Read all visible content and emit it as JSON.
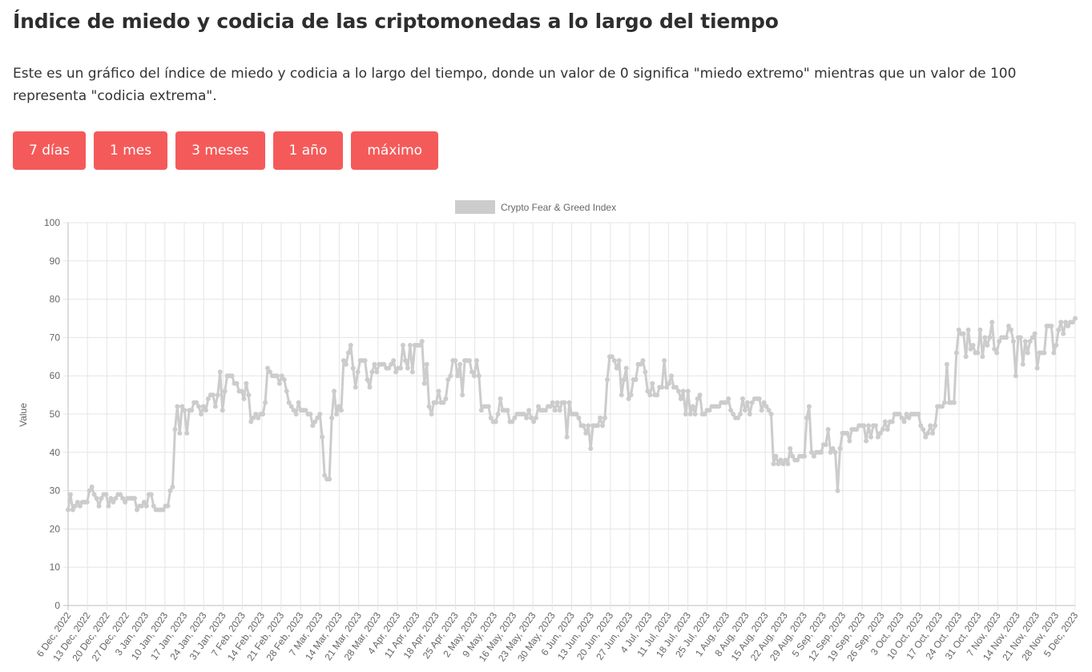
{
  "page": {
    "title": "Índice de miedo y codicia de las criptomonedas a lo largo del tiempo",
    "description": "Este es un gráfico del índice de miedo y codicia a lo largo del tiempo, donde un valor de 0 significa \"miedo extremo\" mientras que un valor de 100 representa \"codicia extrema\"."
  },
  "buttons": [
    {
      "label": "7 días"
    },
    {
      "label": "1 mes"
    },
    {
      "label": "3 meses"
    },
    {
      "label": "1 año"
    },
    {
      "label": "máximo"
    }
  ],
  "colors": {
    "button_bg": "#f55a5a",
    "line": "#cccccc",
    "grid": "#e5e5e5"
  },
  "chart_data": {
    "type": "line",
    "ylabel": "Value",
    "ylim": [
      0,
      100
    ],
    "yticks": [
      0,
      10,
      20,
      30,
      40,
      50,
      60,
      70,
      80,
      90,
      100
    ],
    "grid": true,
    "legend_position": "top-center",
    "x_tick_labels": [
      "6 Dec, 2022",
      "13 Dec, 2022",
      "20 Dec, 2022",
      "27 Dec, 2022",
      "3 Jan, 2023",
      "10 Jan, 2023",
      "17 Jan, 2023",
      "24 Jan, 2023",
      "31 Jan, 2023",
      "7 Feb, 2023",
      "14 Feb, 2023",
      "21 Feb, 2023",
      "28 Feb, 2023",
      "7 Mar, 2023",
      "14 Mar, 2023",
      "21 Mar, 2023",
      "28 Mar, 2023",
      "4 Apr, 2023",
      "11 Apr, 2023",
      "18 Apr, 2023",
      "25 Apr, 2023",
      "2 May, 2023",
      "9 May, 2023",
      "16 May, 2023",
      "23 May, 2023",
      "30 May, 2023",
      "6 Jun, 2023",
      "13 Jun, 2023",
      "20 Jun, 2023",
      "27 Jun, 2023",
      "4 Jul, 2023",
      "11 Jul, 2023",
      "18 Jul, 2023",
      "25 Jul, 2023",
      "1 Aug, 2023",
      "8 Aug, 2023",
      "15 Aug, 2023",
      "22 Aug, 2023",
      "29 Aug, 2023",
      "5 Sep, 2023",
      "12 Sep, 2023",
      "19 Sep, 2023",
      "26 Sep, 2023",
      "3 Oct, 2023",
      "10 Oct, 2023",
      "17 Oct, 2023",
      "24 Oct, 2023",
      "31 Oct, 2023",
      "7 Nov, 2023",
      "14 Nov, 2023",
      "21 Nov, 2023",
      "28 Nov, 2023",
      "5 Dec, 2023"
    ],
    "series": [
      {
        "name": "Crypto Fear & Greed Index",
        "values": [
          25,
          29,
          25,
          26,
          27,
          26,
          27,
          27,
          27,
          30,
          31,
          29,
          28,
          26,
          28,
          29,
          29,
          26,
          28,
          27,
          28,
          29,
          29,
          28,
          27,
          28,
          28,
          28,
          28,
          25,
          26,
          26,
          27,
          26,
          29,
          29,
          26,
          25,
          25,
          25,
          25,
          26,
          26,
          30,
          31,
          46,
          52,
          45,
          52,
          51,
          45,
          51,
          51,
          53,
          53,
          52,
          50,
          52,
          51,
          54,
          55,
          55,
          52,
          55,
          61,
          51,
          56,
          60,
          60,
          60,
          58,
          58,
          56,
          56,
          54,
          58,
          55,
          48,
          49,
          50,
          49,
          50,
          50,
          53,
          62,
          61,
          60,
          60,
          60,
          58,
          60,
          59,
          56,
          53,
          52,
          51,
          50,
          53,
          51,
          51,
          51,
          50,
          50,
          47,
          48,
          49,
          50,
          44,
          34,
          33,
          33,
          49,
          56,
          50,
          52,
          51,
          64,
          63,
          66,
          68,
          62,
          57,
          61,
          64,
          64,
          64,
          59,
          57,
          61,
          63,
          61,
          63,
          63,
          63,
          62,
          62,
          63,
          64,
          61,
          62,
          62,
          68,
          64,
          62,
          68,
          61,
          68,
          68,
          68,
          69,
          58,
          63,
          52,
          50,
          53,
          53,
          56,
          53,
          53,
          54,
          59,
          60,
          64,
          64,
          60,
          63,
          55,
          64,
          64,
          64,
          61,
          60,
          64,
          60,
          51,
          52,
          52,
          52,
          49,
          48,
          48,
          50,
          54,
          51,
          51,
          51,
          48,
          48,
          49,
          50,
          50,
          50,
          50,
          49,
          51,
          49,
          48,
          49,
          52,
          51,
          51,
          51,
          52,
          52,
          53,
          51,
          53,
          51,
          53,
          53,
          44,
          53,
          50,
          50,
          50,
          49,
          47,
          47,
          45,
          47,
          41,
          47,
          47,
          47,
          49,
          47,
          49,
          59,
          65,
          65,
          64,
          62,
          64,
          55,
          59,
          62,
          54,
          55,
          59,
          59,
          63,
          63,
          64,
          61,
          56,
          55,
          58,
          55,
          55,
          57,
          57,
          64,
          57,
          58,
          60,
          57,
          57,
          56,
          54,
          56,
          50,
          56,
          50,
          52,
          50,
          54,
          55,
          50,
          50,
          51,
          51,
          52,
          52,
          52,
          52,
          53,
          53,
          53,
          54,
          51,
          50,
          49,
          49,
          50,
          54,
          51,
          53,
          50,
          53,
          54,
          54,
          54,
          51,
          53,
          52,
          51,
          50,
          37,
          39,
          37,
          38,
          37,
          38,
          37,
          41,
          39,
          38,
          38,
          39,
          39,
          39,
          49,
          52,
          40,
          39,
          40,
          40,
          40,
          42,
          42,
          46,
          40,
          41,
          40,
          30,
          41,
          45,
          45,
          45,
          43,
          46,
          46,
          46,
          47,
          47,
          47,
          43,
          47,
          44,
          47,
          47,
          44,
          45,
          46,
          48,
          46,
          48,
          48,
          50,
          50,
          50,
          49,
          48,
          50,
          49,
          50,
          50,
          50,
          50,
          47,
          46,
          44,
          45,
          47,
          45,
          47,
          52,
          52,
          52,
          53,
          63,
          53,
          53,
          53,
          66,
          72,
          71,
          71,
          65,
          72,
          67,
          68,
          66,
          66,
          72,
          65,
          70,
          68,
          70,
          74,
          67,
          66,
          69,
          70,
          70,
          70,
          73,
          72,
          69,
          60,
          70,
          70,
          63,
          69,
          66,
          69,
          70,
          71,
          62,
          66,
          66,
          66,
          73,
          73,
          73,
          66,
          68,
          72,
          74,
          71,
          74,
          73,
          74,
          74,
          75
        ]
      }
    ]
  }
}
